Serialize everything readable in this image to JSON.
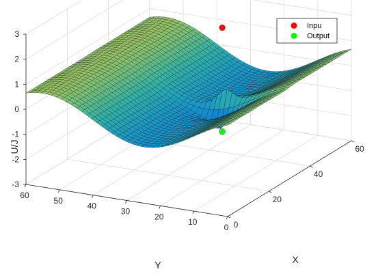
{
  "chart_data": {
    "type": "surface",
    "title": "",
    "xlabel": "X",
    "ylabel": "Y",
    "zlabel": "U/J",
    "xlim": [
      0,
      60
    ],
    "ylim": [
      0,
      60
    ],
    "zlim": [
      -3,
      3
    ],
    "x_ticks": [
      0,
      20,
      40,
      60
    ],
    "y_ticks": [
      0,
      10,
      20,
      30,
      40,
      50,
      60
    ],
    "z_ticks": [
      -3,
      -2,
      -1,
      0,
      1,
      2,
      3
    ],
    "grid": true,
    "colormap": "parula",
    "grid_size": 41,
    "legend_position": "top-right",
    "series": [
      {
        "name": "Inpu",
        "x": 30,
        "y": 20,
        "z": 2.6,
        "color": "#ff0000"
      },
      {
        "name": "Output",
        "x": 30,
        "y": 20,
        "z": -1.55,
        "color": "#00ff00"
      }
    ]
  }
}
